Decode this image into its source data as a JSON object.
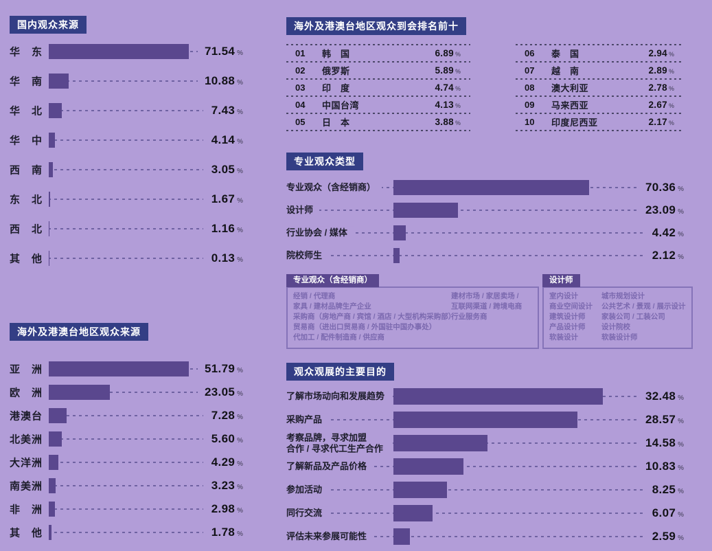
{
  "page_background": "#b29dd8",
  "colors": {
    "bar_fill": "#5a478e",
    "section_header_bg": "#333e85",
    "legend_tab_bg": "#5a478e",
    "leader_dash": "#6f62a2",
    "table_dash": "#4b4768",
    "legend_text": "#7b69af",
    "legend_border": "#8573b8",
    "value_text": "#131318",
    "percent_sign": "#5e5678"
  },
  "sections": {
    "domestic": {
      "title": "国内观众来源"
    },
    "overseas_rank": {
      "title": "海外及港澳台地区观众到会排名前十"
    },
    "visitor_type": {
      "title": "专业观众类型"
    },
    "overseas_source": {
      "title": "海外及港澳台地区观众来源"
    },
    "purpose": {
      "title": "观众观展的主要目的"
    }
  },
  "chart_data": [
    {
      "id": "domestic-visitor-source",
      "type": "bar",
      "orientation": "horizontal",
      "title": "国内观众来源",
      "unit": "%",
      "grid": false,
      "xlim": [
        0,
        75
      ],
      "categories": [
        "华　东",
        "华　南",
        "华　北",
        "华　中",
        "西　南",
        "东　北",
        "西　北",
        "其　他"
      ],
      "values": [
        "71.54",
        "10.88",
        "7.43",
        "4.14",
        "3.05",
        "1.67",
        "1.16",
        "0.13"
      ]
    },
    {
      "id": "overseas-rank-top10",
      "type": "table",
      "title": "海外及港澳台地区观众到会排名前十",
      "unit": "%",
      "rows": [
        {
          "rank": "01",
          "name": "韩　国",
          "value": "6.89"
        },
        {
          "rank": "02",
          "name": "俄罗斯",
          "value": "5.89"
        },
        {
          "rank": "03",
          "name": "印　度",
          "value": "4.74"
        },
        {
          "rank": "04",
          "name": "中国台湾",
          "value": "4.13"
        },
        {
          "rank": "05",
          "name": "日　本",
          "value": "3.88"
        },
        {
          "rank": "06",
          "name": "泰　国",
          "value": "2.94"
        },
        {
          "rank": "07",
          "name": "越　南",
          "value": "2.89"
        },
        {
          "rank": "08",
          "name": "澳大利亚",
          "value": "2.78"
        },
        {
          "rank": "09",
          "name": "马来西亚",
          "value": "2.67"
        },
        {
          "rank": "10",
          "name": "印度尼西亚",
          "value": "2.17"
        }
      ]
    },
    {
      "id": "professional-visitor-type",
      "type": "bar",
      "orientation": "horizontal",
      "title": "专业观众类型",
      "unit": "%",
      "grid": false,
      "xlim": [
        0,
        75
      ],
      "categories": [
        "专业观众（含经销商）",
        "设计师",
        "行业协会 / 媒体",
        "院校师生"
      ],
      "values": [
        "70.36",
        "23.09",
        "4.42",
        "2.12"
      ]
    },
    {
      "id": "overseas-visitor-source",
      "type": "bar",
      "orientation": "horizontal",
      "title": "海外及港澳台地区观众来源",
      "unit": "%",
      "grid": false,
      "xlim": [
        0,
        55
      ],
      "categories": [
        "亚　洲",
        "欧　洲",
        "港澳台",
        "北美洲",
        "大洋洲",
        "南美洲",
        "非　洲",
        "其　他"
      ],
      "values": [
        "51.79",
        "23.05",
        "7.28",
        "5.60",
        "4.29",
        "3.23",
        "2.98",
        "1.78"
      ]
    },
    {
      "id": "visit-purpose",
      "type": "bar",
      "orientation": "horizontal",
      "title": "观众观展的主要目的",
      "unit": "%",
      "grid": false,
      "xlim": [
        0,
        35
      ],
      "categories": [
        "了解市场动向和发展趋势",
        "采购产品",
        "考察品牌，寻求加盟\n合作 / 寻求代工生产合作",
        "了解新品及产品价格",
        "参加活动",
        "同行交流",
        "评估未来参展可能性"
      ],
      "values": [
        "32.48",
        "28.57",
        "14.58",
        "10.83",
        "8.25",
        "6.07",
        "2.59"
      ]
    }
  ],
  "legend_boxes": [
    {
      "tab": "专业观众（含经销商）",
      "columns": [
        [
          "经销 / 代理商",
          "家具 / 建材品牌生产企业",
          "采购商（房地产商 / 宾馆 / 酒店 / 大型机构采购部）",
          "贸易商（进出口贸易商 / 外国驻中国办事处）",
          "代加工 / 配件制造商 / 供应商"
        ],
        [
          "建材市场 / 家居卖场 /",
          "互联网渠道 / 跨境电商",
          "行业服务商"
        ]
      ]
    },
    {
      "tab": "设计师",
      "columns": [
        [
          "室内设计",
          "商业空间设计",
          "建筑设计师",
          "产品设计师",
          "软装设计"
        ],
        [
          "城市规划设计",
          "公共艺术 / 景观 / 展示设计",
          "家装公司 / 工装公司",
          "设计院校",
          "软装设计师"
        ]
      ]
    }
  ]
}
